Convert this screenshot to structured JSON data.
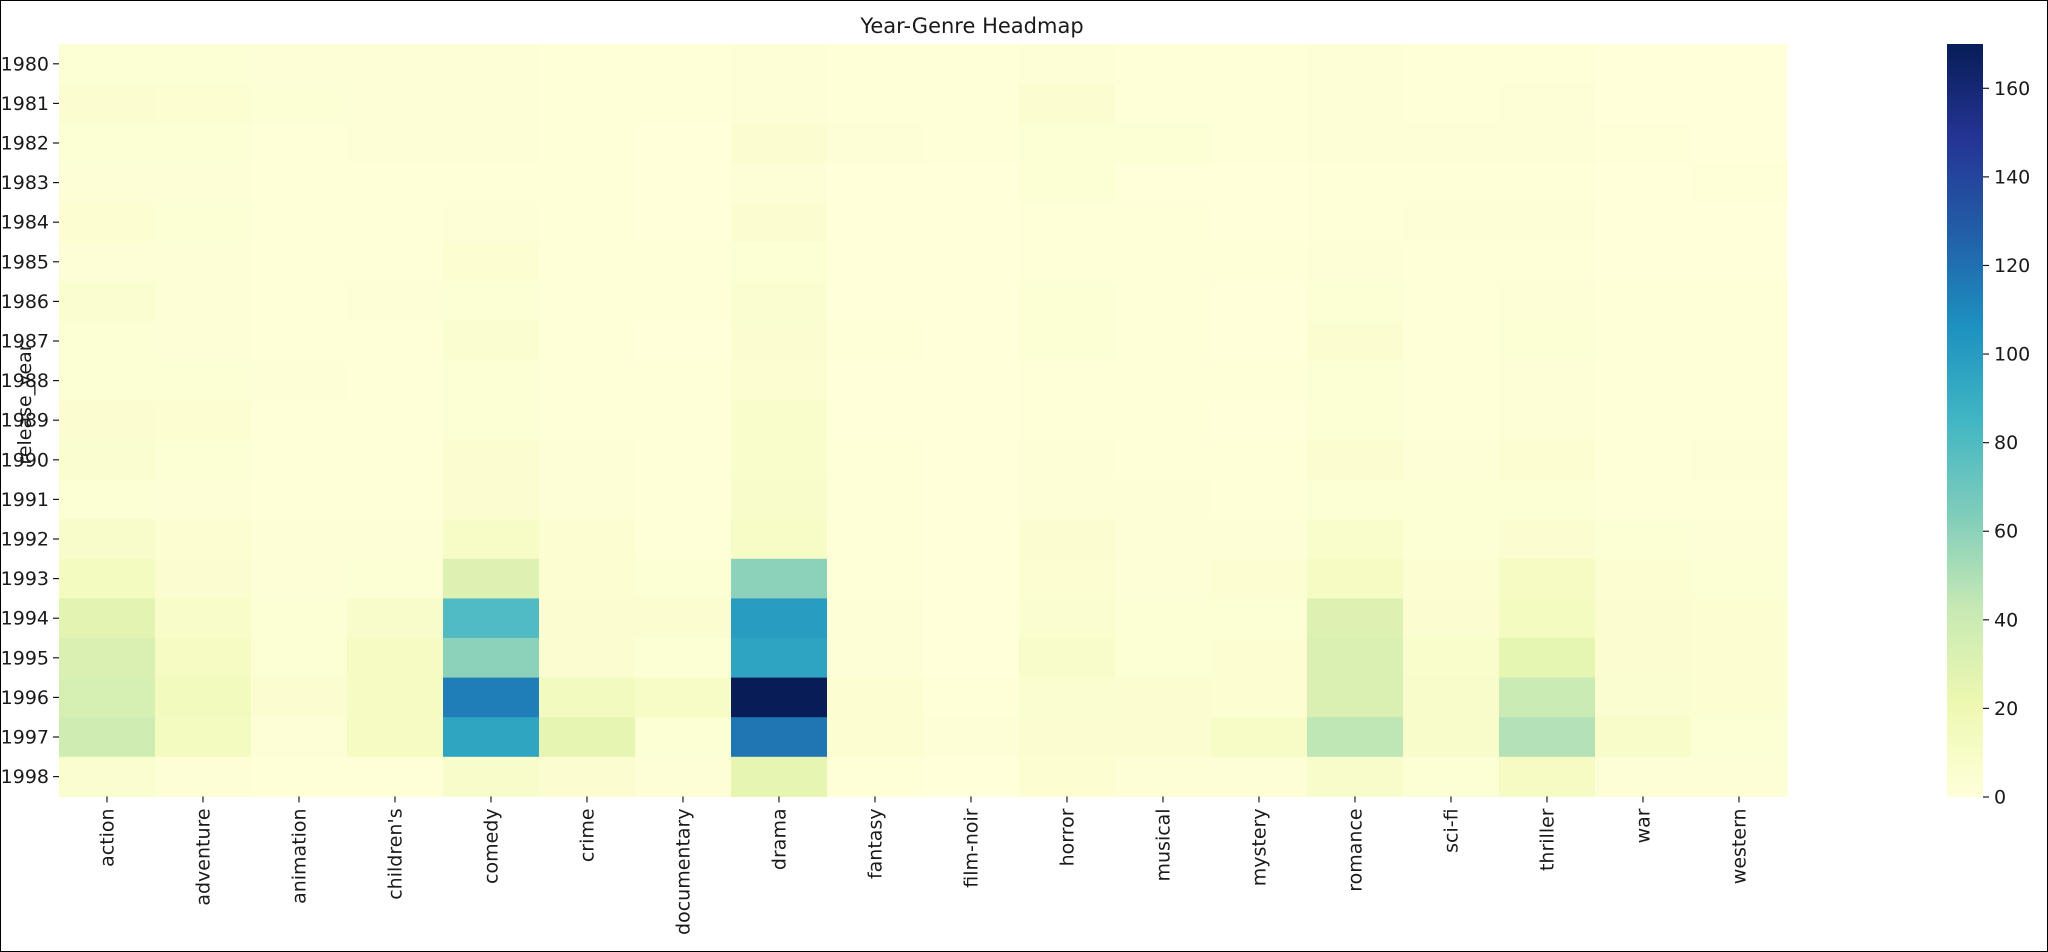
{
  "chart_data": {
    "type": "heatmap",
    "title": "Year-Genre Headmap",
    "ylabel": "release_year",
    "xlabel": "",
    "rows": [
      "1980",
      "1981",
      "1982",
      "1983",
      "1984",
      "1985",
      "1986",
      "1987",
      "1988",
      "1989",
      "1990",
      "1991",
      "1992",
      "1993",
      "1994",
      "1995",
      "1996",
      "1997",
      "1998"
    ],
    "columns": [
      "action",
      "adventure",
      "animation",
      "children's",
      "comedy",
      "crime",
      "documentary",
      "drama",
      "fantasy",
      "film-noir",
      "horror",
      "musical",
      "mystery",
      "romance",
      "sci-fi",
      "thriller",
      "war",
      "western"
    ],
    "values": [
      [
        3,
        3,
        2,
        2,
        2,
        1,
        1,
        2,
        1,
        1,
        2,
        1,
        1,
        2,
        1,
        1,
        0,
        0
      ],
      [
        5,
        4,
        3,
        2,
        2,
        1,
        1,
        2,
        1,
        1,
        5,
        1,
        1,
        2,
        1,
        2,
        0,
        0
      ],
      [
        3,
        3,
        1,
        2,
        2,
        1,
        0,
        5,
        2,
        1,
        3,
        3,
        1,
        2,
        2,
        2,
        1,
        0
      ],
      [
        2,
        2,
        1,
        1,
        1,
        1,
        0,
        2,
        0,
        0,
        3,
        0,
        0,
        1,
        1,
        1,
        0,
        1
      ],
      [
        4,
        3,
        1,
        1,
        2,
        1,
        0,
        5,
        0,
        0,
        1,
        1,
        0,
        1,
        2,
        2,
        0,
        0
      ],
      [
        2,
        2,
        1,
        1,
        4,
        1,
        1,
        3,
        0,
        0,
        1,
        1,
        1,
        2,
        1,
        1,
        0,
        0
      ],
      [
        6,
        2,
        1,
        2,
        3,
        1,
        1,
        6,
        0,
        0,
        3,
        1,
        0,
        3,
        1,
        2,
        1,
        1
      ],
      [
        3,
        2,
        1,
        1,
        6,
        1,
        0,
        5,
        1,
        0,
        3,
        1,
        0,
        5,
        1,
        3,
        1,
        1
      ],
      [
        3,
        3,
        2,
        1,
        3,
        1,
        1,
        4,
        0,
        0,
        1,
        1,
        1,
        3,
        1,
        2,
        1,
        1
      ],
      [
        5,
        4,
        1,
        1,
        3,
        1,
        1,
        7,
        0,
        0,
        1,
        1,
        0,
        3,
        1,
        2,
        1,
        1
      ],
      [
        6,
        3,
        1,
        1,
        5,
        2,
        1,
        7,
        1,
        0,
        2,
        1,
        1,
        5,
        2,
        4,
        1,
        2
      ],
      [
        3,
        2,
        1,
        1,
        5,
        2,
        1,
        8,
        1,
        0,
        2,
        2,
        1,
        3,
        3,
        3,
        1,
        1
      ],
      [
        8,
        4,
        2,
        2,
        10,
        4,
        1,
        10,
        1,
        0,
        5,
        2,
        2,
        7,
        3,
        5,
        3,
        2
      ],
      [
        13,
        5,
        2,
        3,
        30,
        4,
        3,
        60,
        1,
        0,
        4,
        2,
        4,
        11,
        4,
        11,
        4,
        3
      ],
      [
        27,
        9,
        3,
        8,
        80,
        5,
        5,
        100,
        2,
        0,
        6,
        3,
        3,
        30,
        5,
        13,
        5,
        4
      ],
      [
        32,
        12,
        3,
        11,
        60,
        5,
        3,
        96,
        2,
        0,
        8,
        3,
        4,
        32,
        7,
        26,
        5,
        4
      ],
      [
        34,
        15,
        5,
        12,
        114,
        14,
        10,
        170,
        4,
        1,
        6,
        5,
        4,
        32,
        8,
        40,
        6,
        4
      ],
      [
        38,
        13,
        2,
        12,
        95,
        25,
        3,
        118,
        4,
        2,
        5,
        5,
        10,
        45,
        8,
        48,
        9,
        3
      ],
      [
        6,
        2,
        1,
        1,
        8,
        5,
        2,
        25,
        1,
        0,
        4,
        2,
        2,
        8,
        3,
        11,
        2,
        2
      ]
    ],
    "colorbar": {
      "min": 0,
      "max": 170,
      "ticks": [
        0,
        20,
        40,
        60,
        80,
        100,
        120,
        140,
        160
      ],
      "colormap": "YlGnBu",
      "stops": [
        "#ffffd9",
        "#edf8b1",
        "#c7e9b4",
        "#7fcdbb",
        "#41b6c4",
        "#1d91c0",
        "#225ea8",
        "#253494",
        "#081d58"
      ]
    }
  }
}
